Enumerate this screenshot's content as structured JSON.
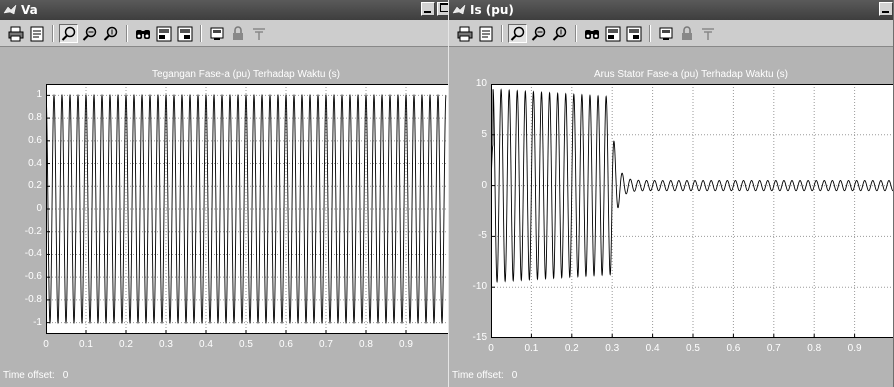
{
  "windows": [
    {
      "id": "va",
      "title": "Va",
      "plot_title": "Tegangan Fase-a (pu) Terhadap Waktu (s)",
      "time_offset_label": "Time offset:",
      "time_offset_value": "0",
      "y_ticks": [
        "1",
        "0.8",
        "0.6",
        "0.4",
        "0.2",
        "0",
        "-0.2",
        "-0.4",
        "-0.6",
        "-0.8",
        "-1"
      ],
      "x_ticks": [
        "0",
        "0.1",
        "0.2",
        "0.3",
        "0.4",
        "0.5",
        "0.6",
        "0.7",
        "0.8",
        "0.9"
      ]
    },
    {
      "id": "is",
      "title": "Is (pu)",
      "plot_title": "Arus Stator Fase-a (pu) Terhadap Waktu (s)",
      "time_offset_label": "Time offset:",
      "time_offset_value": "0",
      "y_ticks": [
        "10",
        "5",
        "0",
        "-5",
        "-10",
        "-15"
      ],
      "x_ticks": [
        "0",
        "0.1",
        "0.2",
        "0.3",
        "0.4",
        "0.5",
        "0.6",
        "0.7",
        "0.8",
        "0.9"
      ]
    }
  ],
  "toolbar_icons": [
    "print-icon",
    "print-figure-icon",
    "zoom-icon",
    "zoom-x-icon",
    "zoom-y-icon",
    "find-icon",
    "save-axes-icon",
    "restore-axes-icon",
    "parameters-icon",
    "lock-icon",
    "floating-scope-icon"
  ],
  "colors": {
    "plot_bg": "#ffffff",
    "axes_frame": "#000000",
    "grid": "#9a9a9a",
    "window_bg": "#b4b4b4"
  },
  "chart_data": [
    {
      "type": "line",
      "title": "Tegangan Fase-a (pu) Terhadap Waktu (s)",
      "xlim": [
        0,
        1
      ],
      "ylim": [
        -1.1,
        1.1
      ],
      "grid": true,
      "series": [
        {
          "signal": "sine",
          "amplitude": 1.0,
          "frequency_hz": 50,
          "t_start": 0,
          "t_end": 1
        }
      ]
    },
    {
      "type": "line",
      "title": "Arus Stator Fase-a (pu) Terhadap Waktu (s)",
      "xlim": [
        0,
        1
      ],
      "ylim": [
        -15,
        10
      ],
      "grid": true,
      "series": [
        {
          "signal": "decaying-sine",
          "peak_amplitude": 9.5,
          "settled_amplitude": 0.5,
          "transient_end_s": 0.3,
          "frequency_hz": 50,
          "t_start": 0,
          "t_end": 1
        }
      ]
    }
  ]
}
